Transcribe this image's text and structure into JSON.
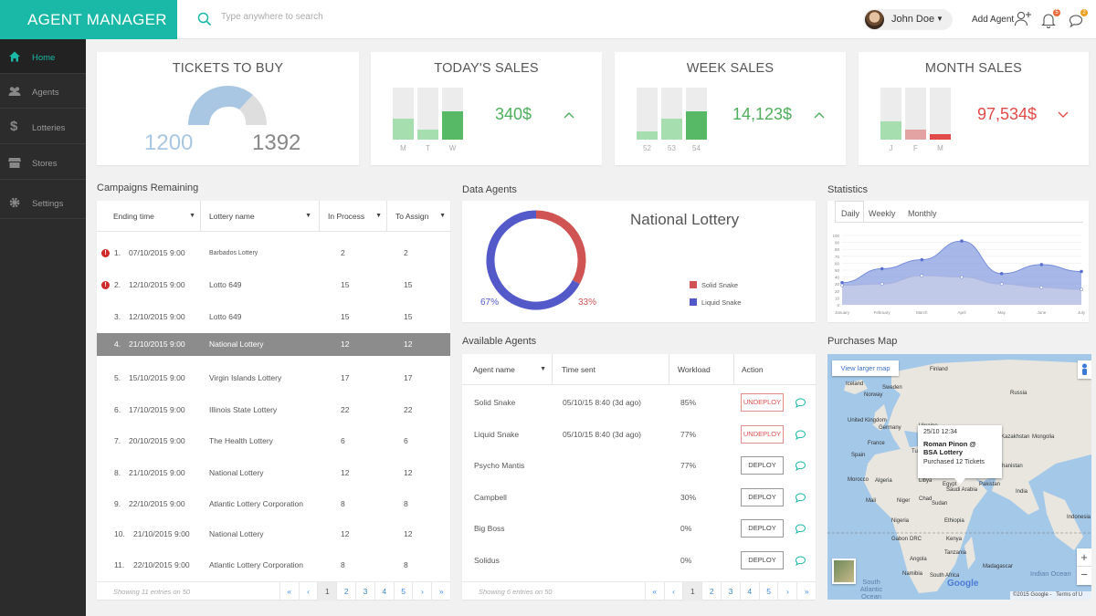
{
  "app": {
    "title": "AGENT MANAGER"
  },
  "search": {
    "placeholder": "Type anywhere to search"
  },
  "user": {
    "name": "John Doe"
  },
  "header": {
    "add_agent": "Add Agent",
    "notifications_count": "5",
    "messages_count": "2"
  },
  "sidebar": {
    "items": [
      {
        "label": "Home",
        "icon": "home-icon",
        "active": true
      },
      {
        "label": "Agents",
        "icon": "users-icon"
      },
      {
        "label": "Lotteries",
        "icon": "dollar-icon"
      },
      {
        "label": "Stores",
        "icon": "store-icon"
      },
      {
        "label": "Settings",
        "icon": "gear-icon"
      }
    ]
  },
  "kpis": {
    "tickets": {
      "title": "TICKETS TO BUY",
      "left": "1200",
      "right": "1392"
    },
    "today": {
      "title": "TODAY'S SALES",
      "value": "340$",
      "trend": "up",
      "bars": [
        {
          "label": "M",
          "value": 0.4
        },
        {
          "label": "T",
          "value": 0.2
        },
        {
          "label": "W",
          "value": 0.55
        }
      ]
    },
    "week": {
      "title": "WEEK SALES",
      "value": "14,123$",
      "trend": "up",
      "bars": [
        {
          "label": "52",
          "value": 0.15
        },
        {
          "label": "53",
          "value": 0.4
        },
        {
          "label": "54",
          "value": 0.55
        }
      ]
    },
    "month": {
      "title": "MONTH SALES",
      "value": "97,534$",
      "trend": "down",
      "bars": [
        {
          "label": "J",
          "value": 0.35
        },
        {
          "label": "F",
          "value": 0.2
        },
        {
          "label": "M",
          "value": 0.1
        }
      ]
    }
  },
  "campaigns": {
    "title": "Campaigns Remaining",
    "columns": [
      "Ending time",
      "Lottery name",
      "In Process",
      "To Assign"
    ],
    "rows": [
      {
        "n": "1.",
        "date": "07/10/2015",
        "time": "9:00",
        "name": "Barbados Lottery",
        "inproc": "2",
        "assign": "2",
        "alert": true
      },
      {
        "n": "2.",
        "date": "12/10/2015",
        "time": "9:00",
        "name": "Lotto 649",
        "inproc": "15",
        "assign": "15",
        "alert": true
      },
      {
        "n": "3.",
        "date": "12/10/2015",
        "time": "9:00",
        "name": "Lotto 649",
        "inproc": "15",
        "assign": "15"
      },
      {
        "n": "4.",
        "date": "21/10/2015",
        "time": "9:00",
        "name": "National Lottery",
        "inproc": "12",
        "assign": "12",
        "selected": true
      },
      {
        "n": "5.",
        "date": "15/10/2015",
        "time": "9:00",
        "name": "Virgin Islands Lottery",
        "inproc": "17",
        "assign": "17"
      },
      {
        "n": "6.",
        "date": "17/10/2015",
        "time": "9:00",
        "name": "Illinois State Lottery",
        "inproc": "22",
        "assign": "22"
      },
      {
        "n": "7.",
        "date": "20/10/2015",
        "time": "9:00",
        "name": "The Health Lottery",
        "inproc": "6",
        "assign": "6"
      },
      {
        "n": "8.",
        "date": "21/10/2015",
        "time": "9:00",
        "name": "National Lottery",
        "inproc": "12",
        "assign": "12"
      },
      {
        "n": "9.",
        "date": "22/10/2015",
        "time": "9:00",
        "name": "Atlantic Lottery Corporation",
        "inproc": "8",
        "assign": "8"
      },
      {
        "n": "10.",
        "date": "21/10/2015",
        "time": "9:00",
        "name": "National Lottery",
        "inproc": "12",
        "assign": "12"
      },
      {
        "n": "11.",
        "date": "22/10/2015",
        "time": "9:00",
        "name": "Atlantic Lottery Corporation",
        "inproc": "8",
        "assign": "8"
      }
    ],
    "footer": "Showing 11 entries on 50",
    "pages": [
      "«",
      "‹",
      "1",
      "2",
      "3",
      "4",
      "5",
      "›",
      "»"
    ]
  },
  "data_agents": {
    "title": "Data Agents",
    "chart_title": "National Lottery",
    "legend": [
      {
        "name": "Solid Snake",
        "color": "#d05454"
      },
      {
        "name": "Liquid Snake",
        "color": "#5359c9"
      }
    ],
    "pct_left": "67%",
    "pct_right": "33%"
  },
  "chart_data": {
    "type": "pie",
    "title": "National Lottery",
    "series": [
      {
        "name": "Solid Snake",
        "value": 33,
        "color": "#d05454"
      },
      {
        "name": "Liquid Snake",
        "value": 67,
        "color": "#5359c9"
      }
    ]
  },
  "stats": {
    "title": "Statistics",
    "tabs": [
      "Daily",
      "Weekly",
      "Monthly"
    ],
    "yticks": [
      "100",
      "90",
      "80",
      "70",
      "60",
      "50",
      "40",
      "30",
      "20",
      "10",
      "0"
    ],
    "xticks": [
      "January",
      "February",
      "March",
      "April",
      "May",
      "June",
      "July"
    ],
    "series1": [
      32,
      52,
      65,
      92,
      45,
      58,
      48
    ],
    "series2": [
      28,
      30,
      42,
      40,
      30,
      25,
      22
    ]
  },
  "available": {
    "title": "Available Agents",
    "columns": [
      "Agent name",
      "Time sent",
      "Workload",
      "Action"
    ],
    "rows": [
      {
        "name": "Solid Snake",
        "time": "05/10/15 8:40 (3d ago)",
        "load": "85%",
        "action": "UNDEPLOY"
      },
      {
        "name": "Liquid Snake",
        "time": "05/10/15 8:40 (3d ago)",
        "load": "77%",
        "action": "UNDEPLOY"
      },
      {
        "name": "Psycho Mantis",
        "time": "",
        "load": "77%",
        "action": "DEPLOY"
      },
      {
        "name": "Campbell",
        "time": "",
        "load": "30%",
        "action": "DEPLOY"
      },
      {
        "name": "Big Boss",
        "time": "",
        "load": "0%",
        "action": "DEPLOY"
      },
      {
        "name": "Solidus",
        "time": "",
        "load": "0%",
        "action": "DEPLOY"
      }
    ],
    "footer": "Showing 6 entries on 50",
    "pages": [
      "«",
      "‹",
      "1",
      "2",
      "3",
      "4",
      "5",
      "›",
      "»"
    ]
  },
  "map": {
    "title": "Purchases Map",
    "larger": "View larger map",
    "popup_time": "25/10  12:34",
    "popup_name": "Roman Pinon @",
    "popup_lottery": "BSA Lottery",
    "popup_detail": "Purchased 12 Tickets",
    "copyright": "©2015 Google -",
    "terms": "Terms of U",
    "labels": [
      {
        "t": "Iceland"
      },
      {
        "t": "Finland"
      },
      {
        "t": "Sweden"
      },
      {
        "t": "Norway"
      },
      {
        "t": "Russia"
      },
      {
        "t": "United Kingdom"
      },
      {
        "t": "Ukraine"
      },
      {
        "t": "Germany"
      },
      {
        "t": "Kazakhstan"
      },
      {
        "t": "France"
      },
      {
        "t": "Spain"
      },
      {
        "t": "Turkey"
      },
      {
        "t": "Iraq"
      },
      {
        "t": "Iran"
      },
      {
        "t": "Afghanistan"
      },
      {
        "t": "Morocco"
      },
      {
        "t": "Algeria"
      },
      {
        "t": "Libya"
      },
      {
        "t": "Egypt"
      },
      {
        "t": "Saudi Arabia"
      },
      {
        "t": "Mali"
      },
      {
        "t": "Niger"
      },
      {
        "t": "Chad"
      },
      {
        "t": "Sudan"
      },
      {
        "t": "Nigeria"
      },
      {
        "t": "Ethiopia"
      },
      {
        "t": "Kenya"
      },
      {
        "t": "DRC"
      },
      {
        "t": "Tanzania"
      },
      {
        "t": "Angola"
      },
      {
        "t": "Namibia"
      },
      {
        "t": "Madagascar"
      },
      {
        "t": "South Africa"
      },
      {
        "t": "Indian Ocean"
      },
      {
        "t": "South Atlantic Ocean"
      },
      {
        "t": "Mongolia"
      },
      {
        "t": "Pakistan"
      },
      {
        "t": "India"
      },
      {
        "t": "Indonesia"
      },
      {
        "t": "Gabon"
      }
    ],
    "google": "Google",
    "zoom_in": "+",
    "zoom_out": "−"
  }
}
